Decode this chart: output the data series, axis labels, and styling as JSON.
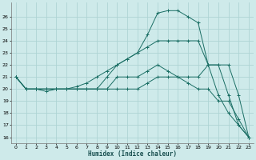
{
  "xlabel": "Humidex (Indice chaleur)",
  "bg_color": "#ceeaea",
  "grid_color": "#aed4d4",
  "line_color": "#1a6e64",
  "xlim": [
    -0.5,
    23.5
  ],
  "ylim": [
    15.5,
    27.2
  ],
  "xticks": [
    0,
    1,
    2,
    3,
    4,
    5,
    6,
    7,
    8,
    9,
    10,
    11,
    12,
    13,
    14,
    15,
    16,
    17,
    18,
    19,
    20,
    21,
    22,
    23
  ],
  "yticks": [
    16,
    17,
    18,
    19,
    20,
    21,
    22,
    23,
    24,
    25,
    26
  ],
  "series": [
    {
      "x": [
        0,
        1,
        2,
        3,
        4,
        5,
        6,
        7,
        8,
        9,
        10,
        11,
        12,
        13,
        14,
        15,
        16,
        17,
        18,
        19,
        20,
        21,
        22,
        23
      ],
      "y": [
        21,
        20,
        20,
        20,
        20,
        20,
        20,
        20,
        20,
        21,
        22,
        22.5,
        23,
        24.5,
        26.3,
        26.5,
        26.5,
        26,
        25.5,
        22,
        19.5,
        18,
        17,
        16
      ]
    },
    {
      "x": [
        0,
        1,
        2,
        3,
        4,
        5,
        6,
        7,
        8,
        9,
        10,
        11,
        12,
        13,
        14,
        15,
        16,
        17,
        18,
        19,
        20,
        21,
        22,
        23
      ],
      "y": [
        21,
        20,
        20,
        20,
        20,
        20,
        20.2,
        20.5,
        21,
        21.5,
        22,
        22.5,
        23,
        23.5,
        24,
        24,
        24,
        24,
        24,
        22,
        22,
        19.5,
        17,
        16
      ]
    },
    {
      "x": [
        0,
        1,
        2,
        3,
        4,
        5,
        6,
        7,
        8,
        9,
        10,
        11,
        12,
        13,
        14,
        15,
        16,
        17,
        18,
        19,
        20,
        21,
        22,
        23
      ],
      "y": [
        21,
        20,
        20,
        20,
        20,
        20,
        20,
        20,
        20,
        20,
        21,
        21,
        21,
        21.5,
        22,
        21.5,
        21,
        21,
        21,
        22,
        22,
        22,
        19.5,
        16
      ]
    },
    {
      "x": [
        0,
        1,
        2,
        3,
        4,
        5,
        6,
        7,
        8,
        9,
        10,
        11,
        12,
        13,
        14,
        15,
        16,
        17,
        18,
        19,
        20,
        21,
        22,
        23
      ],
      "y": [
        21,
        20,
        20,
        19.8,
        20,
        20,
        20,
        20,
        20,
        20,
        20,
        20,
        20,
        20.5,
        21,
        21,
        21,
        20.5,
        20,
        20,
        19,
        19,
        17.5,
        16
      ]
    }
  ]
}
